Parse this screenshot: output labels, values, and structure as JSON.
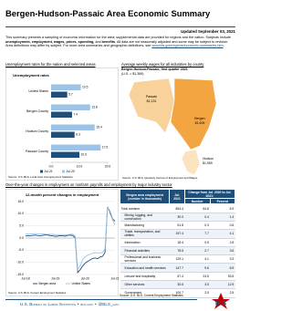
{
  "header": {
    "title": "Bergen-Hudson-Passaic Area Economic Summary",
    "updated": "Updated September 03, 2021"
  },
  "summary": {
    "parts": [
      "This summary presents a sampling of economic information for the area; supplemental data are provided for regions and the nation. Subjects include ",
      "unemployment, employment, wages, prices, spending,",
      " and ",
      "benefits",
      ". All data are not seasonally adjusted and some may be subject to revision. Area definitions may differ by subject. For more area summaries and geographic definitions, see ",
      "www.bls.gov/regions/economic-summaries.htm",
      "."
    ]
  },
  "unemployment": {
    "heading": "Unemployment rates for the nation and selected areas",
    "title": "Unemployment rates",
    "categories": [
      "United States",
      "Bergen County",
      "Hudson County",
      "Passaic County"
    ],
    "series": [
      {
        "name": "Jul-21",
        "color": "#1f4e79",
        "values": [
          5.7,
          7.4,
          8.3,
          10.0
        ],
        "value_labels": [
          "5.7",
          "7.4",
          "8.3",
          "10.0"
        ]
      },
      {
        "name": "Jul-20",
        "color": "#9dc3e6",
        "values": [
          10.5,
          13.8,
          15.4,
          17.5
        ],
        "value_labels": [
          "10.5",
          "13.8",
          "15.4",
          "17.5"
        ]
      }
    ],
    "xlim": [
      0,
      20
    ],
    "xticks": [
      {
        "value": 0,
        "label": "0.0"
      },
      {
        "value": 10,
        "label": "10.0"
      },
      {
        "value": 20,
        "label": "20.0"
      }
    ],
    "source": "Source: U.S. BLS, Local Area Unemployment Statistics."
  },
  "wages": {
    "heading": "Average weekly wages for all industries by county",
    "subtitle": "Bergen-Hudson-Passaic, first quarter 2021",
    "note": "(U.S. = $1,389)",
    "counties": [
      {
        "name": "Passaic",
        "wage": "$1,131"
      },
      {
        "name": "Bergen",
        "wage": "$1,609"
      },
      {
        "name": "Hudson",
        "wage": "$1,959"
      }
    ],
    "source": "Source: U.S. BLS, Quarterly Census of Employment and Wages."
  },
  "employment": {
    "heading": "Over-the-year changes in employment on nonfarm payrolls and employment by major industry sector",
    "title": "12-month percent changes in employment",
    "categories": [
      "Jul-18",
      null,
      null,
      null,
      null,
      null,
      null,
      null,
      null,
      null,
      null,
      null,
      "Jul-19",
      null,
      null,
      null,
      null,
      null,
      null,
      null,
      null,
      null,
      null,
      null,
      "Jul-20",
      null,
      null,
      null,
      null,
      null,
      null,
      null,
      null,
      null,
      null,
      null,
      "Jul-21"
    ],
    "series": [
      {
        "name": "Bergen area",
        "color": "#1f4e79",
        "values": [
          0.8,
          1.0,
          0.9,
          1.1,
          1.2,
          1.0,
          0.9,
          1.1,
          1.3,
          1.2,
          1.0,
          0.9,
          0.7,
          0.8,
          1.0,
          0.9,
          0.8,
          1.1,
          1.2,
          1.0,
          0.1,
          -14.2,
          -13.0,
          -11.5,
          -10.3,
          -9.6,
          -9.0,
          -8.4,
          -8.2,
          -8.5,
          -7.8,
          -7.5,
          -5.9,
          12.8,
          10.6,
          7.9,
          6.9
        ]
      },
      {
        "name": "United States",
        "color": "#9dc3e6",
        "values": [
          1.7,
          1.6,
          1.7,
          1.7,
          1.8,
          1.7,
          1.6,
          1.7,
          1.6,
          1.5,
          1.5,
          1.5,
          1.4,
          1.4,
          1.4,
          1.4,
          1.4,
          1.4,
          1.5,
          1.6,
          0.9,
          -13.0,
          -11.4,
          -8.8,
          -7.8,
          -7.0,
          -6.7,
          -6.2,
          -6.0,
          -6.1,
          -6.1,
          -6.0,
          -4.4,
          12.7,
          10.0,
          7.6,
          5.4
        ]
      }
    ],
    "ylim": [
      -15,
      15
    ],
    "yticks": [
      {
        "value": 15,
        "label": "15.0"
      },
      {
        "value": 10,
        "label": "10.0"
      },
      {
        "value": 5,
        "label": "5.0"
      },
      {
        "value": 0,
        "label": "0.0"
      },
      {
        "value": -5,
        "label": "-5.0"
      },
      {
        "value": -10,
        "label": "-10.0"
      },
      {
        "value": -15,
        "label": "-15.0"
      }
    ],
    "grid": true,
    "source": "Source: U.S. BLS, Current Employment Statistics."
  },
  "table": {
    "title": "Bergen area employment",
    "subtitle": "(number in thousands)",
    "col_date": "Jul. 2021",
    "col_change": "Change from Jul. 2020 to Jul. 2021:",
    "col_number": "Number",
    "col_percent": "Percent",
    "rows": [
      [
        "Total nonfarm",
        "854.4",
        "54.8",
        "6.9"
      ],
      [
        "Mining, logging, and construction",
        "30.0",
        "0.4",
        "1.4"
      ],
      [
        "Manufacturing",
        "51.8",
        "0.3",
        "0.6"
      ],
      [
        "Trade, transportation, and utilities",
        "197.4",
        "7.7",
        "4.1"
      ],
      [
        "Information",
        "18.4",
        "0.5",
        "2.8"
      ],
      [
        "Financial activities",
        "78.5",
        "2.7",
        "3.6"
      ],
      [
        "Professional and business services",
        "129.1",
        "4.1",
        "3.3"
      ],
      [
        "Education and health services",
        "147.7",
        "9.6",
        "6.9"
      ],
      [
        "Leisure and hospitality",
        "67.4",
        "23.5",
        "53.5"
      ],
      [
        "Other services",
        "30.6",
        "3.5",
        "12.9"
      ],
      [
        "Government",
        "100.7",
        "2.5",
        "2.5"
      ]
    ],
    "source": "Source: U.S. BLS, Current Employment Statistics."
  },
  "footer": {
    "agency": "U.S. Bureau of Labor Statistics",
    "separator": "•",
    "site": "bls.gov",
    "handle": "@BLS_gov",
    "logo": "BLS"
  }
}
